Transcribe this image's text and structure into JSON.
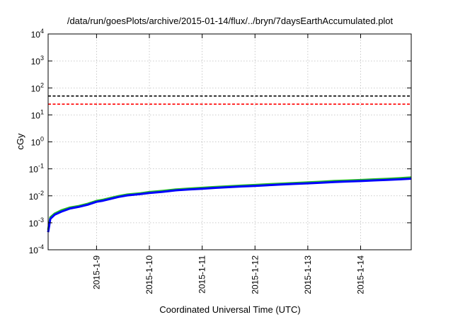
{
  "chart_data": {
    "type": "line",
    "title": "/data/run/goesPlots/archive/2015-01-14/flux/../bryn/7daysEarthAccumulated.plot",
    "xlabel": "Coordinated Universal Time (UTC)",
    "ylabel": "cGy",
    "x_scale": "time",
    "y_scale": "log",
    "xlim": [
      "2015-01-08T02:00",
      "2015-01-14T23:00"
    ],
    "ylim": [
      0.0001,
      10000
    ],
    "grid": true,
    "legend": "none",
    "x_ticks": [
      {
        "x": "2015-01-09T00:00",
        "label": "2015-1-9"
      },
      {
        "x": "2015-01-10T00:00",
        "label": "2015-1-10"
      },
      {
        "x": "2015-01-11T00:00",
        "label": "2015-1-11"
      },
      {
        "x": "2015-01-12T00:00",
        "label": "2015-1-12"
      },
      {
        "x": "2015-01-13T00:00",
        "label": "2015-1-13"
      },
      {
        "x": "2015-01-14T00:00",
        "label": "2015-1-14"
      }
    ],
    "y_ticks": [
      {
        "value": 0.0001,
        "base": "10",
        "exp": "-4"
      },
      {
        "value": 0.001,
        "base": "10",
        "exp": "-3"
      },
      {
        "value": 0.01,
        "base": "10",
        "exp": "-2"
      },
      {
        "value": 0.1,
        "base": "10",
        "exp": "-1"
      },
      {
        "value": 1,
        "base": "10",
        "exp": "0"
      },
      {
        "value": 10,
        "base": "10",
        "exp": "1"
      },
      {
        "value": 100,
        "base": "10",
        "exp": "2"
      },
      {
        "value": 1000,
        "base": "10",
        "exp": "3"
      },
      {
        "value": 10000,
        "base": "10",
        "exp": "4"
      }
    ],
    "reference_lines": [
      {
        "y": 50,
        "color": "#000000",
        "style": "dashed"
      },
      {
        "y": 25,
        "color": "#ff0000",
        "style": "dashed"
      }
    ],
    "series": [
      {
        "color": "#22bb22",
        "x": [
          "2015-01-08T02:00",
          "2015-01-08T03:00",
          "2015-01-08T05:00",
          "2015-01-08T08:00",
          "2015-01-08T12:00",
          "2015-01-08T16:00",
          "2015-01-08T20:00",
          "2015-01-09T00:00",
          "2015-01-09T03:00",
          "2015-01-09T06:00",
          "2015-01-09T10:00",
          "2015-01-09T14:00",
          "2015-01-09T20:00",
          "2015-01-10T00:00",
          "2015-01-10T06:00",
          "2015-01-10T12:00",
          "2015-01-10T18:00",
          "2015-01-11T00:00",
          "2015-01-11T06:00",
          "2015-01-11T12:00",
          "2015-01-11T18:00",
          "2015-01-12T00:00",
          "2015-01-12T06:00",
          "2015-01-12T12:00",
          "2015-01-12T18:00",
          "2015-01-13T00:00",
          "2015-01-13T06:00",
          "2015-01-13T12:00",
          "2015-01-13T18:00",
          "2015-01-14T00:00",
          "2015-01-14T06:00",
          "2015-01-14T12:00",
          "2015-01-14T18:00",
          "2015-01-14T23:00"
        ],
        "y": [
          0.00055,
          0.0016,
          0.0022,
          0.0029,
          0.0037,
          0.0042,
          0.0051,
          0.0065,
          0.0072,
          0.0082,
          0.0098,
          0.0112,
          0.0125,
          0.0138,
          0.0152,
          0.0172,
          0.0186,
          0.0198,
          0.0212,
          0.0226,
          0.024,
          0.0253,
          0.0268,
          0.0284,
          0.0299,
          0.0314,
          0.0332,
          0.0355,
          0.037,
          0.0385,
          0.0408,
          0.0428,
          0.0452,
          0.0478
        ]
      },
      {
        "color": "#0000ff",
        "x": [
          "2015-01-08T02:00",
          "2015-01-08T03:00",
          "2015-01-08T05:00",
          "2015-01-08T08:00",
          "2015-01-08T12:00",
          "2015-01-08T16:00",
          "2015-01-08T20:00",
          "2015-01-09T00:00",
          "2015-01-09T03:00",
          "2015-01-09T06:00",
          "2015-01-09T10:00",
          "2015-01-09T14:00",
          "2015-01-09T20:00",
          "2015-01-10T00:00",
          "2015-01-10T06:00",
          "2015-01-10T12:00",
          "2015-01-10T18:00",
          "2015-01-11T00:00",
          "2015-01-11T06:00",
          "2015-01-11T12:00",
          "2015-01-11T18:00",
          "2015-01-12T00:00",
          "2015-01-12T06:00",
          "2015-01-12T12:00",
          "2015-01-12T18:00",
          "2015-01-13T00:00",
          "2015-01-13T06:00",
          "2015-01-13T12:00",
          "2015-01-13T18:00",
          "2015-01-14T00:00",
          "2015-01-14T06:00",
          "2015-01-14T12:00",
          "2015-01-14T18:00",
          "2015-01-14T23:00"
        ],
        "y": [
          0.00045,
          0.0014,
          0.002,
          0.0026,
          0.0034,
          0.0039,
          0.0047,
          0.006,
          0.0066,
          0.0076,
          0.0091,
          0.0104,
          0.0116,
          0.0128,
          0.0141,
          0.016,
          0.0173,
          0.0184,
          0.0197,
          0.021,
          0.0222,
          0.0234,
          0.0248,
          0.0262,
          0.0276,
          0.029,
          0.0306,
          0.0326,
          0.0339,
          0.0352,
          0.0372,
          0.0389,
          0.041,
          0.0432
        ]
      }
    ]
  }
}
